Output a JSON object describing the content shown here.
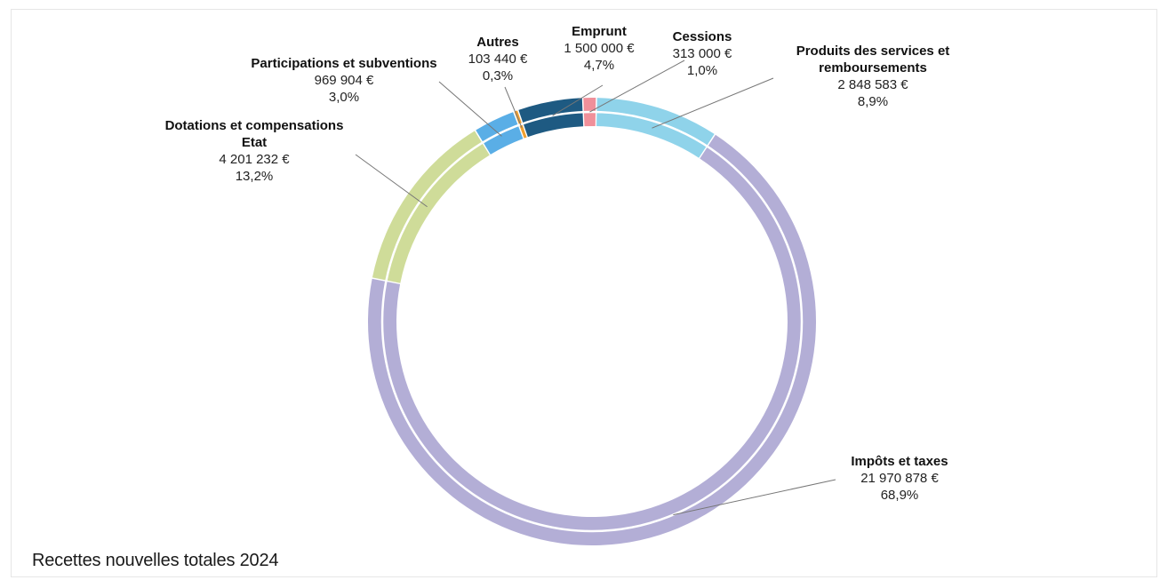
{
  "chart_data": {
    "type": "pie",
    "variant": "donut",
    "title": "Recettes nouvelles totales 2024",
    "slices": [
      {
        "name": "Produits des services et remboursements",
        "name_lines": [
          "Produits des services et",
          "remboursements"
        ],
        "value_text": "2 848 583 €",
        "value": 2848583,
        "percent": 8.9,
        "percent_text": "8,9%",
        "color": "#8fd3ea"
      },
      {
        "name": "Impôts et taxes",
        "name_lines": [
          "Impôts et taxes"
        ],
        "value_text": "21 970 878 €",
        "value": 21970878,
        "percent": 68.9,
        "percent_text": "68,9%",
        "color": "#b3aed6"
      },
      {
        "name": "Dotations et compensations Etat",
        "name_lines": [
          "Dotations et compensations",
          "Etat"
        ],
        "value_text": "4 201 232 €",
        "value": 4201232,
        "percent": 13.2,
        "percent_text": "13,2%",
        "color": "#cfdc99"
      },
      {
        "name": "Participations et subventions",
        "name_lines": [
          "Participations et subventions"
        ],
        "value_text": "969 904 €",
        "value": 969904,
        "percent": 3.0,
        "percent_text": "3,0%",
        "color": "#5aaee6"
      },
      {
        "name": "Autres",
        "name_lines": [
          "Autres"
        ],
        "value_text": "103 440 €",
        "value": 103440,
        "percent": 0.3,
        "percent_text": "0,3%",
        "color": "#f0a030"
      },
      {
        "name": "Emprunt",
        "name_lines": [
          "Emprunt"
        ],
        "value_text": "1 500 000 €",
        "value": 1500000,
        "percent": 4.7,
        "percent_text": "4,7%",
        "color": "#1e5a82"
      },
      {
        "name": "Cessions",
        "name_lines": [
          "Cessions"
        ],
        "value_text": "313 000 €",
        "value": 313000,
        "percent": 1.0,
        "percent_text": "1,0%",
        "color": "#f0909a"
      }
    ]
  }
}
